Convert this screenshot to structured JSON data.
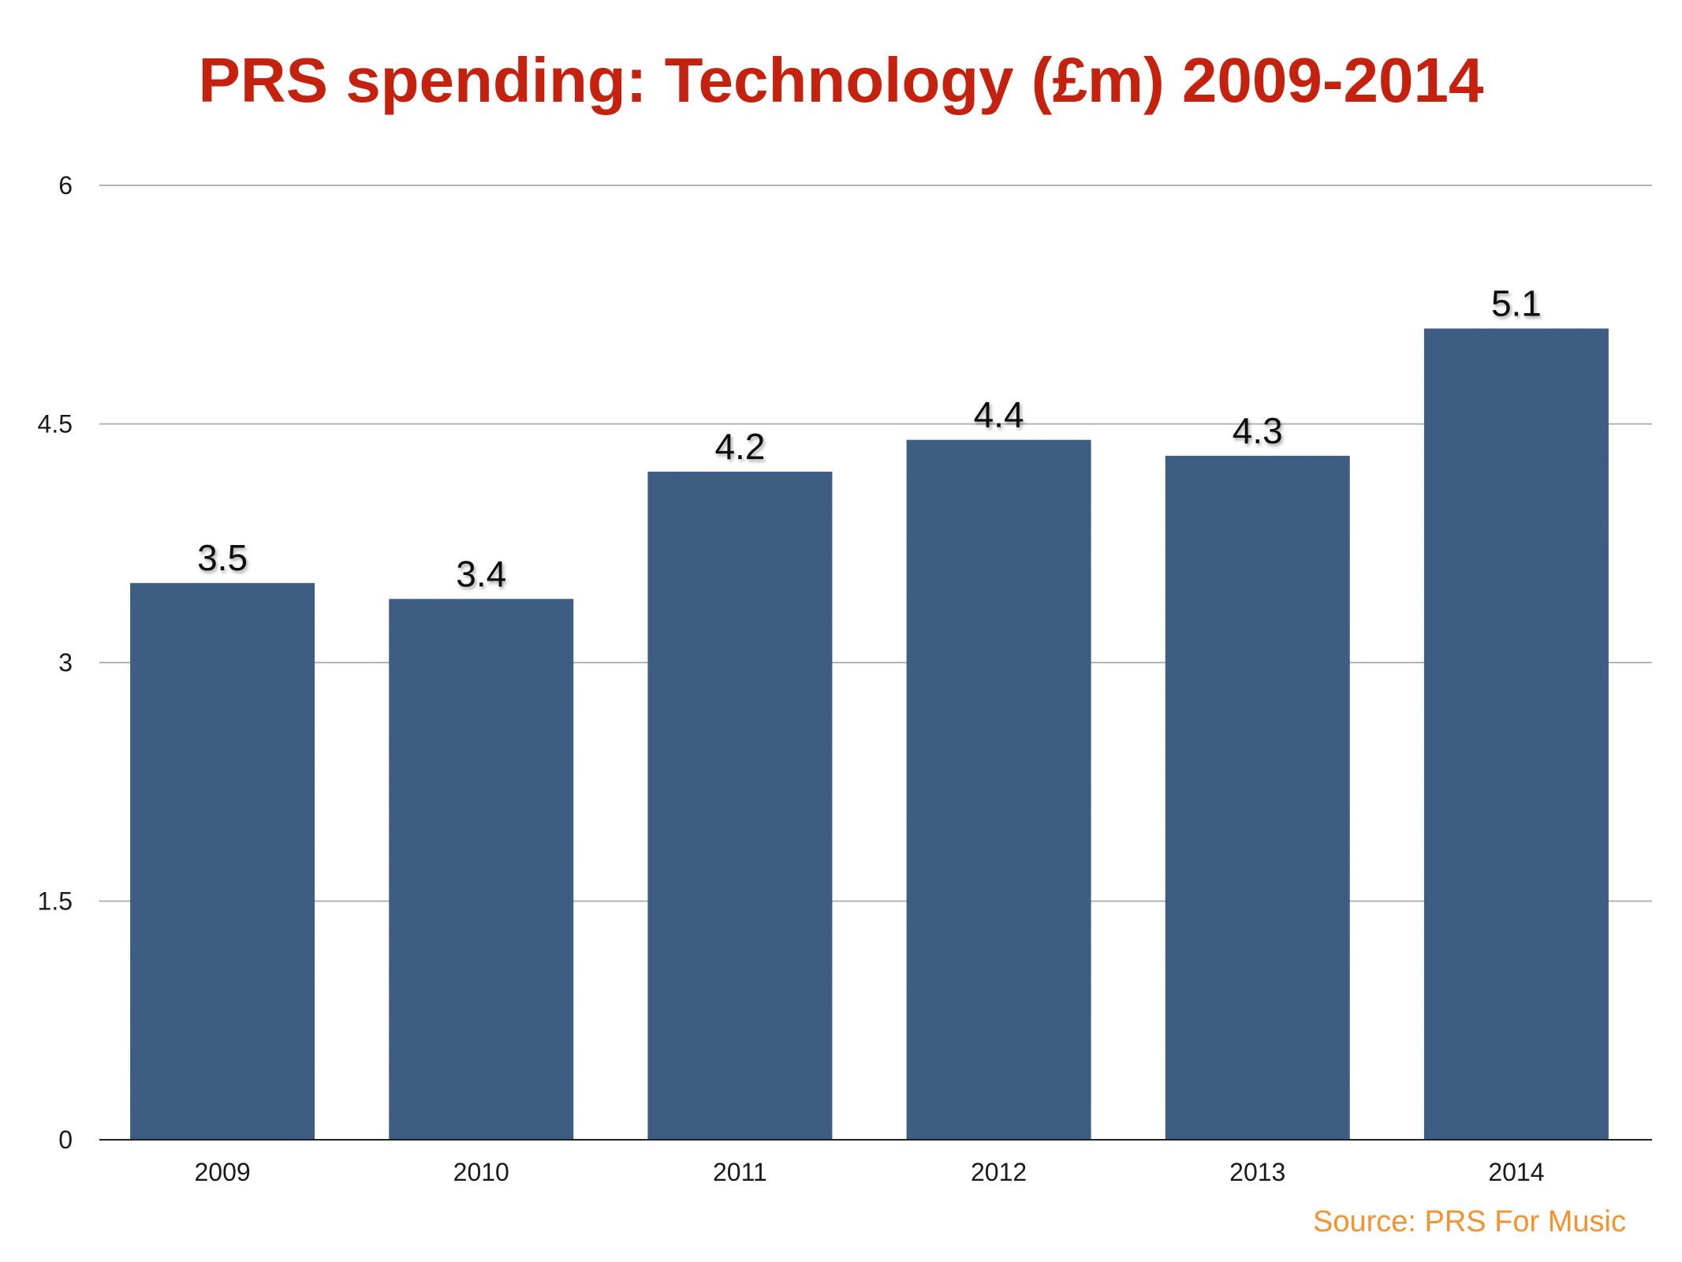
{
  "chart_data": {
    "type": "bar",
    "title": "PRS spending: Technology (£m) 2009-2014",
    "categories": [
      "2009",
      "2010",
      "2011",
      "2012",
      "2013",
      "2014"
    ],
    "values": [
      3.5,
      3.4,
      4.2,
      4.4,
      4.3,
      5.1
    ],
    "data_labels": [
      "3.5",
      "3.4",
      "4.2",
      "4.4",
      "4.3",
      "5.1"
    ],
    "y_ticks": [
      0,
      1.5,
      3,
      4.5,
      6
    ],
    "y_tick_labels": [
      "0",
      "1.5",
      "3",
      "4.5",
      "6"
    ],
    "ylim": [
      0,
      6
    ],
    "xlabel": "",
    "ylabel": "",
    "grid": true,
    "legend": "none",
    "bar_color": "#3f5f86",
    "title_color": "#c4210e"
  },
  "source": "Source: PRS For Music",
  "source_color": "#f5912e"
}
